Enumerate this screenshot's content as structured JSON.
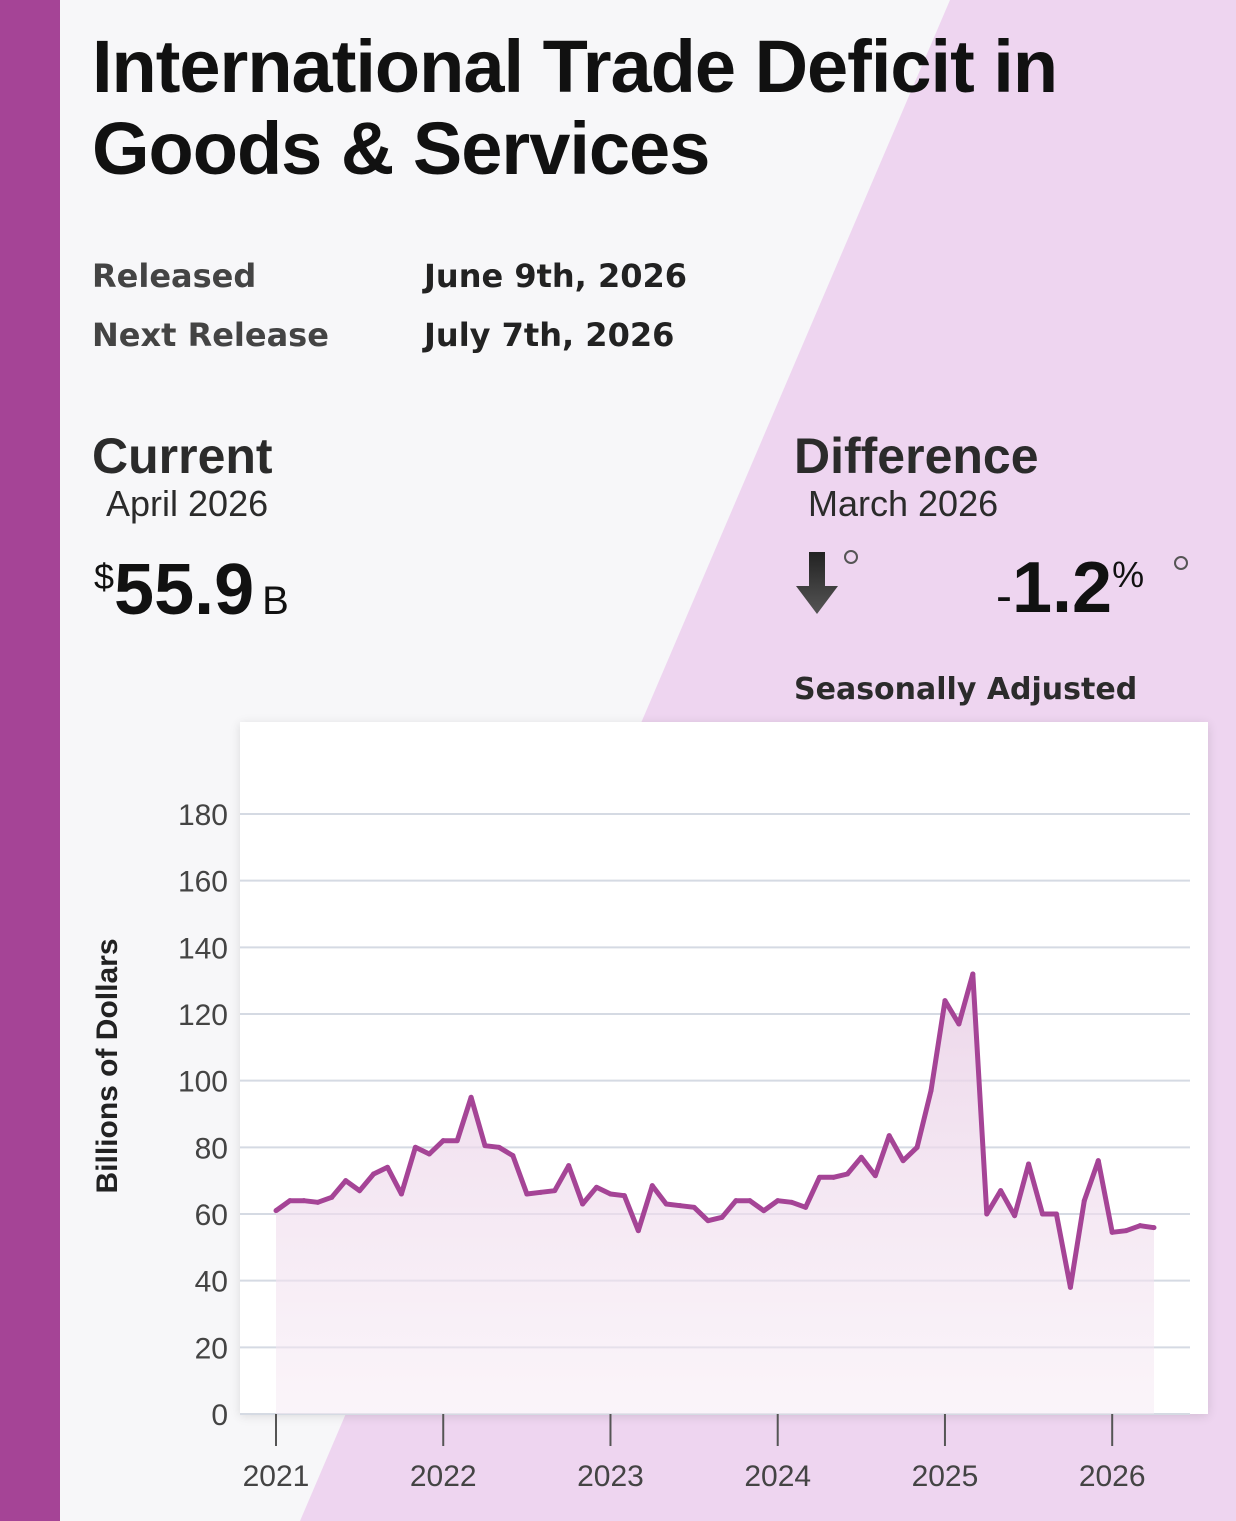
{
  "header": {
    "title_line1": "International Trade Deficit in",
    "title_line2": "Goods & Services"
  },
  "release": {
    "released_label": "Released",
    "released_value": "June 9th, 2026",
    "next_label": "Next Release",
    "next_value": "July 7th, 2026"
  },
  "current": {
    "label": "Current",
    "period": "April 2026",
    "currency": "$",
    "value": "55.9",
    "unit": "B"
  },
  "difference": {
    "label": "Difference",
    "period": "March 2026",
    "direction": "down",
    "sign": "-",
    "value": "1.2",
    "unit": "%",
    "adjustment_note": "Seasonally Adjusted"
  },
  "colors": {
    "accent": "#a54496",
    "line": "#a54496",
    "background_diagonal": "#eed5f0"
  },
  "chart_data": {
    "type": "area",
    "title": "",
    "xlabel": "",
    "ylabel": "Billions of Dollars",
    "ylim": [
      0,
      180
    ],
    "yticks": [
      0,
      20,
      40,
      60,
      80,
      100,
      120,
      140,
      160,
      180
    ],
    "xlim": [
      2021.0,
      2026.25
    ],
    "xticks": [
      {
        "value": 2021,
        "label": "2021"
      },
      {
        "value": 2022,
        "label": "2022"
      },
      {
        "value": 2023,
        "label": "2023"
      },
      {
        "value": 2024,
        "label": "2024"
      },
      {
        "value": 2025,
        "label": "2025"
      },
      {
        "value": 2026,
        "label": "2026"
      }
    ],
    "grid": true,
    "legend": "none",
    "series": [
      {
        "values": [
          {
            "x": "2021-01",
            "y": 61
          },
          {
            "x": "2021-02",
            "y": 64
          },
          {
            "x": "2021-03",
            "y": 64
          },
          {
            "x": "2021-04",
            "y": 63.5
          },
          {
            "x": "2021-05",
            "y": 65
          },
          {
            "x": "2021-06",
            "y": 70
          },
          {
            "x": "2021-07",
            "y": 67
          },
          {
            "x": "2021-08",
            "y": 72
          },
          {
            "x": "2021-09",
            "y": 74
          },
          {
            "x": "2021-10",
            "y": 66
          },
          {
            "x": "2021-11",
            "y": 80
          },
          {
            "x": "2021-12",
            "y": 78
          },
          {
            "x": "2022-01",
            "y": 82
          },
          {
            "x": "2022-02",
            "y": 82
          },
          {
            "x": "2022-03",
            "y": 95
          },
          {
            "x": "2022-04",
            "y": 80.5
          },
          {
            "x": "2022-05",
            "y": 80
          },
          {
            "x": "2022-06",
            "y": 77.5
          },
          {
            "x": "2022-07",
            "y": 66
          },
          {
            "x": "2022-08",
            "y": 66.5
          },
          {
            "x": "2022-09",
            "y": 67
          },
          {
            "x": "2022-10",
            "y": 74.5
          },
          {
            "x": "2022-11",
            "y": 63
          },
          {
            "x": "2022-12",
            "y": 68
          },
          {
            "x": "2023-01",
            "y": 66
          },
          {
            "x": "2023-02",
            "y": 65.5
          },
          {
            "x": "2023-03",
            "y": 55
          },
          {
            "x": "2023-04",
            "y": 68.5
          },
          {
            "x": "2023-05",
            "y": 63
          },
          {
            "x": "2023-06",
            "y": 62.5
          },
          {
            "x": "2023-07",
            "y": 62
          },
          {
            "x": "2023-08",
            "y": 58
          },
          {
            "x": "2023-09",
            "y": 59
          },
          {
            "x": "2023-10",
            "y": 64
          },
          {
            "x": "2023-11",
            "y": 64
          },
          {
            "x": "2023-12",
            "y": 61
          },
          {
            "x": "2024-01",
            "y": 64
          },
          {
            "x": "2024-02",
            "y": 63.5
          },
          {
            "x": "2024-03",
            "y": 62
          },
          {
            "x": "2024-04",
            "y": 71
          },
          {
            "x": "2024-05",
            "y": 71
          },
          {
            "x": "2024-06",
            "y": 72
          },
          {
            "x": "2024-07",
            "y": 77
          },
          {
            "x": "2024-08",
            "y": 71.5
          },
          {
            "x": "2024-09",
            "y": 83.5
          },
          {
            "x": "2024-10",
            "y": 76
          },
          {
            "x": "2024-11",
            "y": 80
          },
          {
            "x": "2024-12",
            "y": 97
          },
          {
            "x": "2025-01",
            "y": 124
          },
          {
            "x": "2025-02",
            "y": 117
          },
          {
            "x": "2025-03",
            "y": 132
          },
          {
            "x": "2025-04",
            "y": 60
          },
          {
            "x": "2025-05",
            "y": 67
          },
          {
            "x": "2025-06",
            "y": 59.5
          },
          {
            "x": "2025-07",
            "y": 75
          },
          {
            "x": "2025-08",
            "y": 60
          },
          {
            "x": "2025-09",
            "y": 60
          },
          {
            "x": "2025-10",
            "y": 38
          },
          {
            "x": "2025-11",
            "y": 64
          },
          {
            "x": "2025-12",
            "y": 76
          },
          {
            "x": "2026-01",
            "y": 54.5
          },
          {
            "x": "2026-02",
            "y": 55
          },
          {
            "x": "2026-03",
            "y": 56.5
          },
          {
            "x": "2026-04",
            "y": 55.9
          }
        ]
      }
    ]
  }
}
